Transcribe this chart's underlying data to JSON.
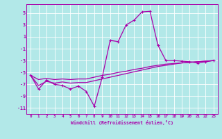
{
  "xlabel": "Windchill (Refroidissement éolien,°C)",
  "bg_color": "#b2e8e8",
  "line_color": "#aa00aa",
  "grid_color": "#ffffff",
  "xlim": [
    -0.5,
    23.5
  ],
  "ylim": [
    -12,
    6.5
  ],
  "yticks": [
    5,
    3,
    1,
    -1,
    -3,
    -5,
    -7,
    -9,
    -11
  ],
  "xticks": [
    0,
    1,
    2,
    3,
    4,
    5,
    6,
    7,
    8,
    9,
    10,
    11,
    12,
    13,
    14,
    15,
    16,
    17,
    18,
    19,
    20,
    21,
    22,
    23
  ],
  "main_x": [
    0,
    1,
    2,
    3,
    4,
    5,
    6,
    7,
    8,
    9,
    10,
    11,
    12,
    13,
    14,
    15,
    16,
    17,
    18,
    19,
    20,
    21,
    22,
    23
  ],
  "main_y": [
    -5.5,
    -7.8,
    -6.3,
    -7.0,
    -7.2,
    -7.8,
    -7.3,
    -8.2,
    -10.7,
    -5.8,
    0.4,
    0.2,
    3.0,
    3.8,
    5.2,
    5.3,
    -0.4,
    -3.0,
    -3.0,
    -3.1,
    -3.2,
    -3.4,
    -3.2,
    -3.0
  ],
  "smooth1_x": [
    0,
    1,
    2,
    3,
    4,
    5,
    6,
    7,
    8,
    9,
    10,
    11,
    12,
    13,
    14,
    15,
    16,
    17,
    18,
    19,
    20,
    21,
    22,
    23
  ],
  "smooth1_y": [
    -5.5,
    -6.2,
    -6.0,
    -6.2,
    -6.1,
    -6.2,
    -6.1,
    -6.1,
    -5.8,
    -5.5,
    -5.3,
    -5.0,
    -4.8,
    -4.5,
    -4.3,
    -4.0,
    -3.8,
    -3.6,
    -3.5,
    -3.4,
    -3.3,
    -3.2,
    -3.1,
    -3.0
  ],
  "smooth2_x": [
    0,
    1,
    2,
    3,
    4,
    5,
    6,
    7,
    8,
    9,
    10,
    11,
    12,
    13,
    14,
    15,
    16,
    17,
    18,
    19,
    20,
    21,
    22,
    23
  ],
  "smooth2_y": [
    -5.5,
    -7.2,
    -6.5,
    -6.8,
    -6.6,
    -6.8,
    -6.7,
    -6.7,
    -6.4,
    -6.1,
    -5.8,
    -5.5,
    -5.2,
    -4.9,
    -4.6,
    -4.3,
    -4.0,
    -3.8,
    -3.6,
    -3.4,
    -3.3,
    -3.2,
    -3.1,
    -3.0
  ]
}
